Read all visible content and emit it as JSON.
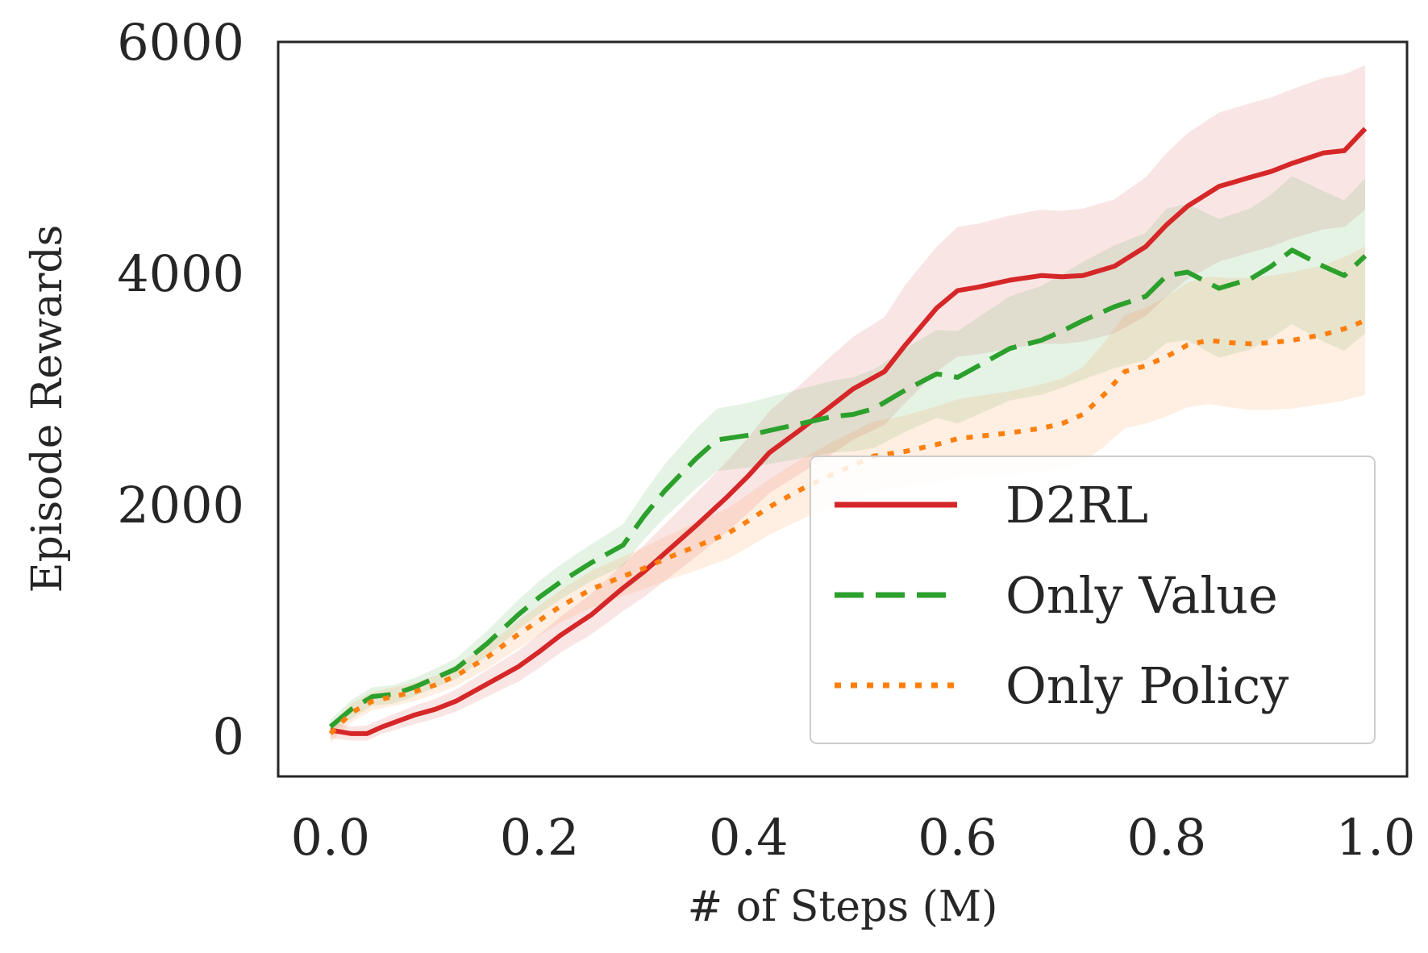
{
  "chart_data": {
    "type": "line",
    "title": "",
    "xlabel": "# of Steps (M)",
    "ylabel": "Episode Rewards",
    "xlim": [
      -0.05,
      1.03
    ],
    "ylim": [
      -350,
      6000
    ],
    "xticks": [
      0.0,
      0.2,
      0.4,
      0.6,
      0.8,
      1.0
    ],
    "xtick_labels": [
      "0.0",
      "0.2",
      "0.4",
      "0.6",
      "0.8",
      "1.0"
    ],
    "yticks": [
      0,
      2000,
      4000,
      6000
    ],
    "ytick_labels": [
      "0",
      "2000",
      "4000",
      "6000"
    ],
    "grid": false,
    "legend_position": "lower-right",
    "series": [
      {
        "name": "D2RL",
        "color": "#d62728",
        "style": "solid",
        "x": [
          0.0,
          0.02,
          0.035,
          0.05,
          0.08,
          0.1,
          0.12,
          0.15,
          0.18,
          0.2,
          0.22,
          0.25,
          0.28,
          0.3,
          0.32,
          0.35,
          0.38,
          0.4,
          0.42,
          0.45,
          0.48,
          0.5,
          0.53,
          0.55,
          0.58,
          0.6,
          0.62,
          0.65,
          0.68,
          0.7,
          0.72,
          0.75,
          0.78,
          0.8,
          0.82,
          0.85,
          0.88,
          0.9,
          0.92,
          0.95,
          0.97,
          0.99
        ],
        "y": [
          50,
          20,
          20,
          80,
          180,
          230,
          300,
          450,
          600,
          730,
          870,
          1050,
          1280,
          1420,
          1580,
          1820,
          2070,
          2250,
          2450,
          2650,
          2860,
          3000,
          3150,
          3380,
          3700,
          3850,
          3880,
          3940,
          3980,
          3970,
          3980,
          4060,
          4230,
          4420,
          4580,
          4750,
          4830,
          4880,
          4950,
          5040,
          5060,
          5250
        ],
        "band_low": [
          -20,
          -40,
          -40,
          20,
          100,
          150,
          210,
          340,
          470,
          590,
          720,
          880,
          1080,
          1200,
          1340,
          1550,
          1770,
          1930,
          2100,
          2270,
          2440,
          2560,
          2690,
          2880,
          3150,
          3280,
          3300,
          3350,
          3390,
          3390,
          3410,
          3480,
          3630,
          3800,
          3950,
          4100,
          4180,
          4230,
          4300,
          4380,
          4400,
          4550
        ],
        "band_high": [
          120,
          80,
          90,
          150,
          260,
          320,
          400,
          570,
          740,
          880,
          1030,
          1230,
          1490,
          1650,
          1830,
          2100,
          2380,
          2580,
          2810,
          3040,
          3290,
          3450,
          3620,
          3900,
          4230,
          4400,
          4430,
          4500,
          4550,
          4540,
          4560,
          4640,
          4830,
          5040,
          5210,
          5390,
          5470,
          5520,
          5590,
          5690,
          5720,
          5800
        ]
      },
      {
        "name": "Only Value",
        "color": "#2ca02c",
        "style": "dashed",
        "x": [
          0.0,
          0.02,
          0.04,
          0.06,
          0.08,
          0.1,
          0.12,
          0.15,
          0.18,
          0.2,
          0.22,
          0.25,
          0.28,
          0.3,
          0.32,
          0.35,
          0.37,
          0.4,
          0.42,
          0.45,
          0.48,
          0.5,
          0.52,
          0.55,
          0.58,
          0.6,
          0.62,
          0.65,
          0.68,
          0.7,
          0.72,
          0.75,
          0.78,
          0.8,
          0.82,
          0.85,
          0.88,
          0.9,
          0.92,
          0.95,
          0.97,
          0.99
        ],
        "y": [
          80,
          230,
          340,
          360,
          420,
          500,
          580,
          800,
          1050,
          1200,
          1330,
          1500,
          1650,
          1900,
          2120,
          2400,
          2560,
          2600,
          2640,
          2700,
          2760,
          2780,
          2830,
          2990,
          3130,
          3100,
          3200,
          3350,
          3420,
          3500,
          3590,
          3710,
          3800,
          3980,
          4010,
          3870,
          3950,
          4060,
          4200,
          4060,
          3980,
          4150
        ],
        "band_low": [
          20,
          150,
          260,
          280,
          340,
          420,
          490,
          690,
          920,
          1060,
          1180,
          1340,
          1470,
          1700,
          1890,
          2140,
          2290,
          2320,
          2350,
          2400,
          2450,
          2460,
          2490,
          2630,
          2750,
          2700,
          2780,
          2900,
          2950,
          3010,
          3080,
          3180,
          3250,
          3400,
          3420,
          3270,
          3340,
          3440,
          3560,
          3410,
          3330,
          3480
        ],
        "band_high": [
          140,
          310,
          420,
          440,
          500,
          580,
          670,
          910,
          1180,
          1340,
          1480,
          1660,
          1830,
          2100,
          2350,
          2660,
          2830,
          2880,
          2930,
          3000,
          3070,
          3100,
          3170,
          3350,
          3510,
          3500,
          3620,
          3800,
          3890,
          3990,
          4100,
          4240,
          4350,
          4560,
          4600,
          4470,
          4560,
          4680,
          4840,
          4710,
          4630,
          4820
        ]
      },
      {
        "name": "Only Policy",
        "color": "#ff7f0e",
        "style": "dotted",
        "x": [
          0.0,
          0.02,
          0.04,
          0.06,
          0.08,
          0.1,
          0.12,
          0.15,
          0.18,
          0.2,
          0.22,
          0.25,
          0.28,
          0.3,
          0.32,
          0.35,
          0.38,
          0.4,
          0.42,
          0.45,
          0.48,
          0.5,
          0.52,
          0.55,
          0.58,
          0.6,
          0.62,
          0.65,
          0.68,
          0.7,
          0.72,
          0.74,
          0.76,
          0.78,
          0.8,
          0.82,
          0.84,
          0.86,
          0.88,
          0.9,
          0.92,
          0.95,
          0.97,
          0.99
        ],
        "y": [
          20,
          200,
          300,
          340,
          380,
          440,
          520,
          680,
          880,
          1000,
          1120,
          1270,
          1380,
          1450,
          1530,
          1640,
          1750,
          1860,
          1980,
          2130,
          2260,
          2340,
          2420,
          2460,
          2520,
          2570,
          2590,
          2620,
          2660,
          2700,
          2780,
          2950,
          3150,
          3200,
          3280,
          3380,
          3420,
          3400,
          3390,
          3400,
          3420,
          3470,
          3520,
          3590
        ],
        "band_low": [
          -60,
          120,
          220,
          260,
          300,
          360,
          430,
          580,
          760,
          870,
          980,
          1110,
          1210,
          1270,
          1340,
          1430,
          1530,
          1630,
          1740,
          1870,
          1980,
          2050,
          2120,
          2150,
          2190,
          2230,
          2240,
          2260,
          2280,
          2310,
          2370,
          2500,
          2660,
          2700,
          2760,
          2840,
          2870,
          2840,
          2820,
          2820,
          2830,
          2870,
          2900,
          2950
        ],
        "band_high": [
          100,
          280,
          380,
          420,
          460,
          520,
          610,
          780,
          1000,
          1130,
          1260,
          1430,
          1550,
          1630,
          1720,
          1850,
          1970,
          2090,
          2220,
          2390,
          2540,
          2630,
          2720,
          2770,
          2850,
          2910,
          2940,
          2980,
          3040,
          3090,
          3190,
          3400,
          3640,
          3700,
          3800,
          3920,
          3970,
          3960,
          3960,
          3980,
          4010,
          4070,
          4140,
          4230
        ]
      }
    ]
  }
}
